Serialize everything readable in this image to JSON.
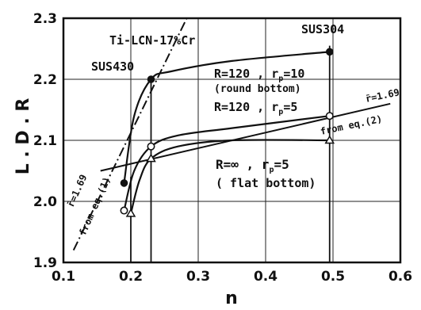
{
  "chart_data": {
    "type": "line",
    "xlabel": "n",
    "ylabel": "L . D . R",
    "xlim": [
      0.1,
      0.6
    ],
    "ylim": [
      1.9,
      2.3
    ],
    "x_ticks": [
      "0.1",
      "0.2",
      "0.3",
      "0.4",
      "0.5",
      "0.6"
    ],
    "y_ticks": [
      "1.9",
      "2.0",
      "2.1",
      "2.2",
      "2.3"
    ],
    "grid": true,
    "materials": [
      {
        "name": "SUS430",
        "n": 0.23
      },
      {
        "name": "Ti-LCN-17%Cr",
        "n": 0.2
      },
      {
        "name": "SUS304",
        "n": 0.495
      }
    ],
    "series": [
      {
        "label": "R=120 , rp=10 (round bottom)",
        "marker": "filled-circle",
        "points": [
          [
            0.19,
            2.03
          ],
          [
            0.23,
            2.2
          ],
          [
            0.495,
            2.245
          ]
        ],
        "curve": [
          [
            0.19,
            2.03
          ],
          [
            0.205,
            2.14
          ],
          [
            0.23,
            2.2
          ],
          [
            0.26,
            2.213
          ],
          [
            0.35,
            2.23
          ],
          [
            0.495,
            2.245
          ]
        ]
      },
      {
        "label": "R=120 , rp=5",
        "marker": "open-circle",
        "points": [
          [
            0.19,
            1.985
          ],
          [
            0.23,
            2.09
          ],
          [
            0.495,
            2.14
          ]
        ],
        "curve": [
          [
            0.19,
            1.985
          ],
          [
            0.205,
            2.05
          ],
          [
            0.23,
            2.09
          ],
          [
            0.27,
            2.108
          ],
          [
            0.35,
            2.12
          ],
          [
            0.495,
            2.14
          ]
        ]
      },
      {
        "label": "R=∞ , rp=5 (flat bottom)",
        "marker": "open-triangle",
        "points": [
          [
            0.2,
            1.98
          ],
          [
            0.23,
            2.07
          ],
          [
            0.495,
            2.1
          ]
        ],
        "curve": [
          [
            0.2,
            1.98
          ],
          [
            0.213,
            2.035
          ],
          [
            0.23,
            2.07
          ],
          [
            0.27,
            2.09
          ],
          [
            0.35,
            2.1
          ],
          [
            0.495,
            2.1
          ]
        ]
      }
    ],
    "reference_lines": [
      {
        "label": "r̄=1.69 from eq.(1)",
        "style": "dash-dot",
        "points": [
          [
            0.115,
            1.92
          ],
          [
            0.283,
            2.3
          ]
        ]
      },
      {
        "label": "r̄=1.69 from eq.(2)",
        "style": "solid",
        "points": [
          [
            0.155,
            2.05
          ],
          [
            0.585,
            2.16
          ]
        ]
      }
    ],
    "annotations": {
      "sus304": "SUS304",
      "ti_lcn": "Ti-LCN-17%Cr",
      "sus430": "SUS430",
      "r120_rp10_a": "R=120 , r",
      "r120_rp10_sub": "p",
      "r120_rp10_b": "=10",
      "round_bottom": "(round bottom)",
      "r120_rp5_a": "R=120 , r",
      "r120_rp5_sub": "p",
      "r120_rp5_b": "=5",
      "rbar_right": "r̄=1.69",
      "from_eq2": "from eq.(2)",
      "rinf_a": "R=∞ , r",
      "rinf_sub": "p",
      "rinf_b": "=5",
      "flat_bottom": "( flat bottom)",
      "rbar_left": "r̄=1.69",
      "from_eq1": "from eq.(1)"
    }
  }
}
